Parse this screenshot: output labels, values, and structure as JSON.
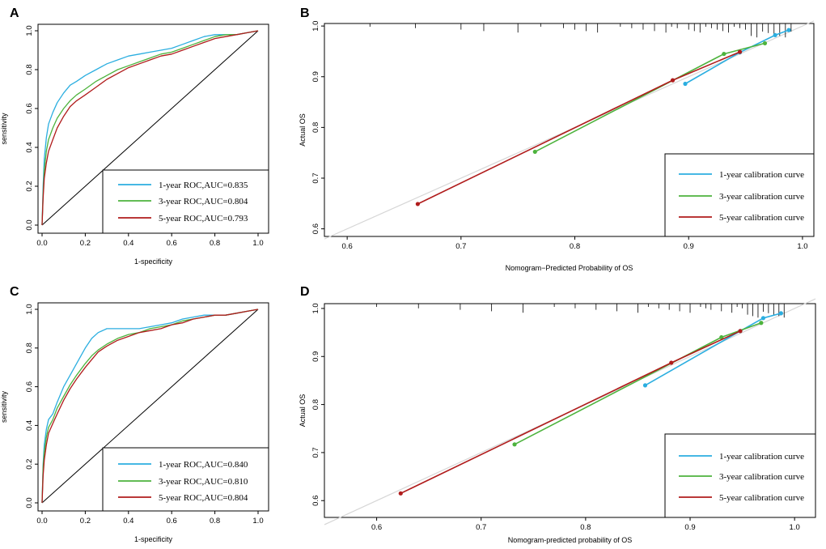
{
  "figure": {
    "colors": {
      "one_year": "#2BAEE0",
      "three_year": "#4DB33D",
      "five_year": "#B01C1C",
      "ideal": "#D6D6D6"
    }
  },
  "chart_data": [
    {
      "id": "A",
      "type": "line",
      "subtype": "roc",
      "panel_label": "A",
      "xlabel": "1-specificity",
      "ylabel": "sensitivity",
      "xlim": [
        0,
        1
      ],
      "ylim": [
        0,
        1
      ],
      "xticks": [
        "0.0",
        "0.2",
        "0.4",
        "0.6",
        "0.8",
        "1.0"
      ],
      "yticks": [
        "0.0",
        "0.2",
        "0.4",
        "0.6",
        "0.8",
        "1.0"
      ],
      "legend_position": "bottom-right",
      "diagonal": true,
      "series": [
        {
          "key": "one_year",
          "name": "1-year ROC,AUC=0.835",
          "x": [
            0,
            0.005,
            0.01,
            0.02,
            0.03,
            0.05,
            0.07,
            0.1,
            0.13,
            0.16,
            0.2,
            0.25,
            0.3,
            0.35,
            0.4,
            0.45,
            0.5,
            0.55,
            0.6,
            0.65,
            0.7,
            0.75,
            0.8,
            0.85,
            0.9,
            0.95,
            1.0
          ],
          "y": [
            0,
            0.2,
            0.34,
            0.45,
            0.52,
            0.58,
            0.63,
            0.68,
            0.72,
            0.74,
            0.77,
            0.8,
            0.83,
            0.85,
            0.87,
            0.88,
            0.89,
            0.9,
            0.91,
            0.93,
            0.95,
            0.97,
            0.98,
            0.98,
            0.98,
            0.99,
            1.0
          ]
        },
        {
          "key": "three_year",
          "name": "3-year ROC,AUC=0.804",
          "x": [
            0,
            0.005,
            0.01,
            0.02,
            0.03,
            0.05,
            0.07,
            0.1,
            0.13,
            0.16,
            0.2,
            0.25,
            0.3,
            0.35,
            0.4,
            0.45,
            0.5,
            0.55,
            0.6,
            0.65,
            0.7,
            0.75,
            0.8,
            0.85,
            0.9,
            0.95,
            1.0
          ],
          "y": [
            0,
            0.16,
            0.28,
            0.38,
            0.44,
            0.5,
            0.55,
            0.6,
            0.64,
            0.67,
            0.7,
            0.74,
            0.77,
            0.8,
            0.82,
            0.84,
            0.86,
            0.88,
            0.89,
            0.91,
            0.93,
            0.95,
            0.97,
            0.98,
            0.98,
            0.99,
            1.0
          ]
        },
        {
          "key": "five_year",
          "name": "5-year ROC,AUC=0.793",
          "x": [
            0,
            0.005,
            0.01,
            0.02,
            0.03,
            0.05,
            0.07,
            0.1,
            0.13,
            0.16,
            0.2,
            0.25,
            0.3,
            0.35,
            0.4,
            0.45,
            0.5,
            0.55,
            0.6,
            0.65,
            0.7,
            0.75,
            0.8,
            0.85,
            0.9,
            0.95,
            1.0
          ],
          "y": [
            0,
            0.14,
            0.24,
            0.32,
            0.38,
            0.44,
            0.5,
            0.56,
            0.61,
            0.64,
            0.67,
            0.71,
            0.75,
            0.78,
            0.81,
            0.83,
            0.85,
            0.87,
            0.88,
            0.9,
            0.92,
            0.94,
            0.96,
            0.97,
            0.98,
            0.99,
            1.0
          ]
        }
      ]
    },
    {
      "id": "B",
      "type": "line",
      "subtype": "calibration",
      "panel_label": "B",
      "xlabel": "Nomogram−Predicted Probability of OS",
      "ylabel": "Actual OS",
      "xlim": [
        0.58,
        1.01
      ],
      "ylim": [
        0.585,
        1.005
      ],
      "xticks": [
        "0.6",
        "0.7",
        "0.8",
        "0.9",
        "1.0"
      ],
      "yticks": [
        "0.6",
        "0.7",
        "0.8",
        "0.9",
        "1.0"
      ],
      "legend_position": "bottom-right",
      "rug_ticks": [
        0.62,
        0.66,
        0.7,
        0.72,
        0.75,
        0.77,
        0.79,
        0.8,
        0.81,
        0.82,
        0.84,
        0.85,
        0.86,
        0.87,
        0.88,
        0.885,
        0.89,
        0.9,
        0.905,
        0.91,
        0.915,
        0.92,
        0.925,
        0.93,
        0.935,
        0.94,
        0.945,
        0.95,
        0.955,
        0.96,
        0.965,
        0.97,
        0.975,
        0.98,
        0.985,
        0.99
      ],
      "series": [
        {
          "key": "one_year",
          "name": "1-year calibration curve",
          "x": [
            0.897,
            0.945,
            0.976,
            0.988
          ],
          "y": [
            0.886,
            0.948,
            0.982,
            0.992
          ]
        },
        {
          "key": "three_year",
          "name": "3-year calibration curve",
          "x": [
            0.765,
            0.931,
            0.967
          ],
          "y": [
            0.752,
            0.945,
            0.966
          ]
        },
        {
          "key": "five_year",
          "name": "5-year calibration curve",
          "x": [
            0.662,
            0.886,
            0.945
          ],
          "y": [
            0.649,
            0.893,
            0.949
          ]
        }
      ]
    },
    {
      "id": "C",
      "type": "line",
      "subtype": "roc",
      "panel_label": "C",
      "xlabel": "1-specificity",
      "ylabel": "sensitivity",
      "xlim": [
        0,
        1
      ],
      "ylim": [
        0,
        1
      ],
      "xticks": [
        "0.0",
        "0.2",
        "0.4",
        "0.6",
        "0.8",
        "1.0"
      ],
      "yticks": [
        "0.0",
        "0.2",
        "0.4",
        "0.6",
        "0.8",
        "1.0"
      ],
      "legend_position": "bottom-right",
      "diagonal": true,
      "series": [
        {
          "key": "one_year",
          "name": "1-year ROC,AUC=0.840",
          "x": [
            0,
            0.005,
            0.01,
            0.02,
            0.03,
            0.05,
            0.07,
            0.1,
            0.13,
            0.16,
            0.2,
            0.23,
            0.26,
            0.3,
            0.35,
            0.4,
            0.45,
            0.5,
            0.55,
            0.6,
            0.65,
            0.7,
            0.75,
            0.8,
            0.85,
            0.9,
            0.95,
            1.0
          ],
          "y": [
            0,
            0.2,
            0.3,
            0.38,
            0.43,
            0.46,
            0.52,
            0.6,
            0.66,
            0.72,
            0.8,
            0.85,
            0.88,
            0.9,
            0.9,
            0.9,
            0.9,
            0.91,
            0.92,
            0.93,
            0.95,
            0.96,
            0.97,
            0.97,
            0.97,
            0.98,
            0.99,
            1.0
          ]
        },
        {
          "key": "three_year",
          "name": "3-year ROC,AUC=0.810",
          "x": [
            0,
            0.005,
            0.01,
            0.02,
            0.03,
            0.05,
            0.07,
            0.1,
            0.13,
            0.16,
            0.2,
            0.23,
            0.26,
            0.3,
            0.35,
            0.4,
            0.45,
            0.5,
            0.55,
            0.6,
            0.65,
            0.7,
            0.75,
            0.8,
            0.85,
            0.9,
            0.95,
            1.0
          ],
          "y": [
            0,
            0.18,
            0.26,
            0.34,
            0.39,
            0.43,
            0.49,
            0.55,
            0.61,
            0.66,
            0.72,
            0.76,
            0.79,
            0.82,
            0.85,
            0.87,
            0.88,
            0.9,
            0.91,
            0.92,
            0.94,
            0.95,
            0.96,
            0.97,
            0.97,
            0.98,
            0.99,
            1.0
          ]
        },
        {
          "key": "five_year",
          "name": "5-year ROC,AUC=0.804",
          "x": [
            0,
            0.005,
            0.01,
            0.02,
            0.03,
            0.05,
            0.07,
            0.1,
            0.13,
            0.16,
            0.2,
            0.23,
            0.26,
            0.3,
            0.35,
            0.4,
            0.45,
            0.5,
            0.55,
            0.6,
            0.65,
            0.7,
            0.75,
            0.8,
            0.85,
            0.9,
            0.95,
            1.0
          ],
          "y": [
            0,
            0.14,
            0.22,
            0.3,
            0.36,
            0.41,
            0.46,
            0.53,
            0.59,
            0.64,
            0.7,
            0.74,
            0.78,
            0.81,
            0.84,
            0.86,
            0.88,
            0.89,
            0.9,
            0.92,
            0.93,
            0.95,
            0.96,
            0.97,
            0.97,
            0.98,
            0.99,
            1.0
          ]
        }
      ]
    },
    {
      "id": "D",
      "type": "line",
      "subtype": "calibration",
      "panel_label": "D",
      "xlabel": "Nomogram-predicted probability of OS",
      "ylabel": "Actual OS",
      "xlim": [
        0.55,
        1.02
      ],
      "ylim": [
        0.565,
        1.01
      ],
      "xticks": [
        "0.6",
        "0.7",
        "0.8",
        "0.9",
        "1.0"
      ],
      "yticks": [
        "0.6",
        "0.7",
        "0.8",
        "0.9",
        "1.0"
      ],
      "legend_position": "bottom-right",
      "rug_ticks": [
        0.6,
        0.64,
        0.68,
        0.71,
        0.74,
        0.77,
        0.79,
        0.81,
        0.83,
        0.85,
        0.86,
        0.87,
        0.88,
        0.89,
        0.9,
        0.91,
        0.915,
        0.92,
        0.93,
        0.94,
        0.945,
        0.95,
        0.955,
        0.96,
        0.965,
        0.97,
        0.975,
        0.98,
        0.985,
        0.99
      ],
      "series": [
        {
          "key": "one_year",
          "name": "1-year calibration curve",
          "x": [
            0.857,
            0.948,
            0.97,
            0.987
          ],
          "y": [
            0.84,
            0.953,
            0.98,
            0.99
          ]
        },
        {
          "key": "three_year",
          "name": "3-year calibration curve",
          "x": [
            0.732,
            0.93,
            0.968
          ],
          "y": [
            0.717,
            0.94,
            0.97
          ]
        },
        {
          "key": "five_year",
          "name": "5-year calibration curve",
          "x": [
            0.623,
            0.882,
            0.948
          ],
          "y": [
            0.615,
            0.887,
            0.953
          ]
        }
      ]
    }
  ]
}
